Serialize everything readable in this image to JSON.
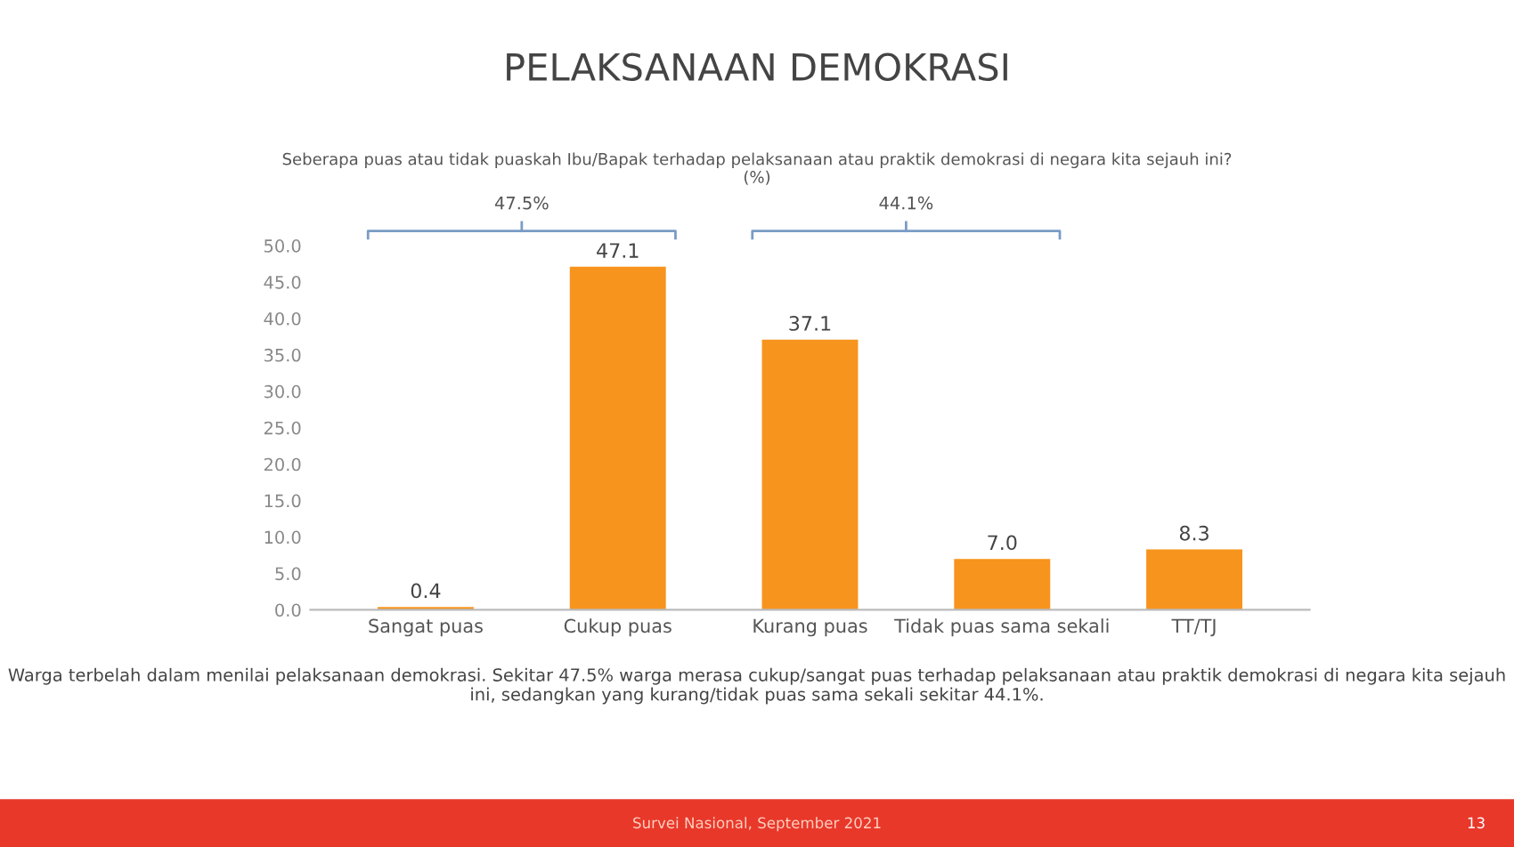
{
  "chart_data": {
    "type": "bar",
    "title": "PELAKSANAAN DEMOKRASI",
    "subtitle": "Seberapa puas atau tidak puaskah Ibu/Bapak terhadap pelaksanaan atau praktik demokrasi di negara kita sejauh ini?\n(%)",
    "categories": [
      "Sangat puas",
      "Cukup puas",
      "Kurang puas",
      "Tidak puas sama sekali",
      "TT/TJ"
    ],
    "values": [
      0.4,
      47.1,
      37.1,
      7.0,
      8.3
    ],
    "color": "#f7941d",
    "ylim": [
      0,
      50
    ],
    "yticks": [
      {
        "value": 0,
        "label": "0.0"
      },
      {
        "value": 5,
        "label": "5.0"
      },
      {
        "value": 10,
        "label": "10.0"
      },
      {
        "value": 15,
        "label": "15.0"
      },
      {
        "value": 20,
        "label": "20.0"
      },
      {
        "value": 25,
        "label": "25.0"
      },
      {
        "value": 30,
        "label": "30.0"
      },
      {
        "value": 35,
        "label": "35.0"
      },
      {
        "value": 40,
        "label": "40.0"
      },
      {
        "value": 45,
        "label": "45.0"
      },
      {
        "value": 50,
        "label": "50.0"
      }
    ],
    "value_labels": [
      "0.4",
      "47.1",
      "37.1",
      "7.0",
      "8.3"
    ],
    "grid": false,
    "annotations": [
      "47.5%",
      "44.1%",
      "Warga terbelah dalam menilai pelaksanaan demokrasi. Sekitar 47.5% warga merasa cukup/sangat puas terhadap pelaksanaan atau praktik demokrasi di negara kita sejauh ini, sedangkan yang kurang/tidak puas sama sekali sekitar 44.1%.",
      "Survei Nasional, September 2021",
      "13"
    ]
  }
}
